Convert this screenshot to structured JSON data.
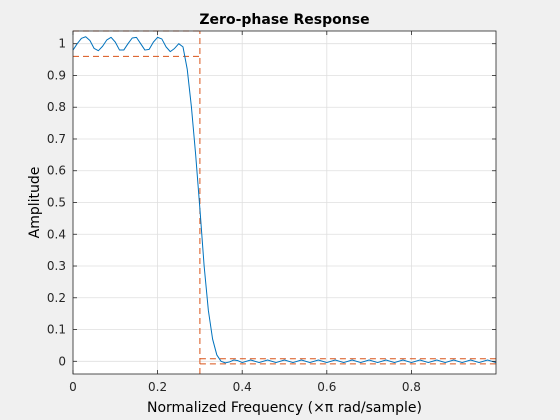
{
  "chart_data": {
    "type": "line",
    "title": "Zero-phase Response",
    "xlabel": "Normalized Frequency (×π rad/sample)",
    "ylabel": "Amplitude",
    "xlim": [
      0,
      1
    ],
    "ylim": [
      -0.04,
      1.04
    ],
    "x_ticks": [
      0,
      0.2,
      0.4,
      0.6,
      0.8
    ],
    "x_tick_labels": [
      "0",
      "0.2",
      "0.4",
      "0.6",
      "0.8"
    ],
    "y_ticks": [
      0,
      0.1,
      0.2,
      0.3,
      0.4,
      0.5,
      0.6,
      0.7,
      0.8,
      0.9,
      1
    ],
    "y_tick_labels": [
      "0",
      "0.1",
      "0.2",
      "0.3",
      "0.4",
      "0.5",
      "0.6",
      "0.7",
      "0.8",
      "0.9",
      "1"
    ],
    "grid": true,
    "series": [
      {
        "color": "#0072bd",
        "x": [
          0,
          0.01,
          0.02,
          0.03,
          0.04,
          0.05,
          0.06,
          0.07,
          0.08,
          0.09,
          0.1,
          0.11,
          0.12,
          0.13,
          0.14,
          0.15,
          0.16,
          0.17,
          0.18,
          0.19,
          0.2,
          0.21,
          0.22,
          0.23,
          0.24,
          0.25,
          0.26,
          0.27,
          0.28,
          0.29,
          0.3,
          0.31,
          0.32,
          0.33,
          0.34,
          0.35,
          0.36,
          0.37,
          0.38,
          0.39,
          0.4,
          0.42,
          0.44,
          0.46,
          0.48,
          0.5,
          0.52,
          0.54,
          0.56,
          0.58,
          0.6,
          0.62,
          0.64,
          0.66,
          0.68,
          0.7,
          0.72,
          0.74,
          0.76,
          0.78,
          0.8,
          0.82,
          0.84,
          0.86,
          0.88,
          0.9,
          0.92,
          0.94,
          0.96,
          0.98,
          1
        ],
        "y": [
          0.98,
          1.0,
          1.017,
          1.022,
          1.01,
          0.985,
          0.978,
          0.992,
          1.012,
          1.02,
          1.005,
          0.98,
          0.98,
          1.0,
          1.018,
          1.02,
          1.0,
          0.98,
          0.982,
          1.005,
          1.02,
          1.015,
          0.99,
          0.975,
          0.985,
          1.0,
          0.99,
          0.92,
          0.8,
          0.65,
          0.48,
          0.3,
          0.16,
          0.07,
          0.02,
          0.0,
          -0.005,
          -0.002,
          0.004,
          0.002,
          -0.004,
          0.004,
          -0.004,
          0.004,
          -0.004,
          0.004,
          -0.004,
          0.004,
          -0.004,
          0.004,
          -0.004,
          0.004,
          -0.004,
          0.004,
          -0.004,
          0.004,
          -0.004,
          0.004,
          -0.004,
          0.004,
          -0.004,
          0.004,
          -0.004,
          0.004,
          -0.004,
          0.004,
          -0.004,
          0.004,
          -0.004,
          0.004,
          -0.004
        ]
      }
    ],
    "spec_boxes": {
      "color": "#d95319",
      "passband": {
        "x": [
          0,
          0.3
        ],
        "y": [
          0.96,
          1.04
        ]
      },
      "stopband": {
        "x": [
          0.3,
          1
        ],
        "y": [
          -0.008,
          0.008
        ]
      }
    }
  }
}
